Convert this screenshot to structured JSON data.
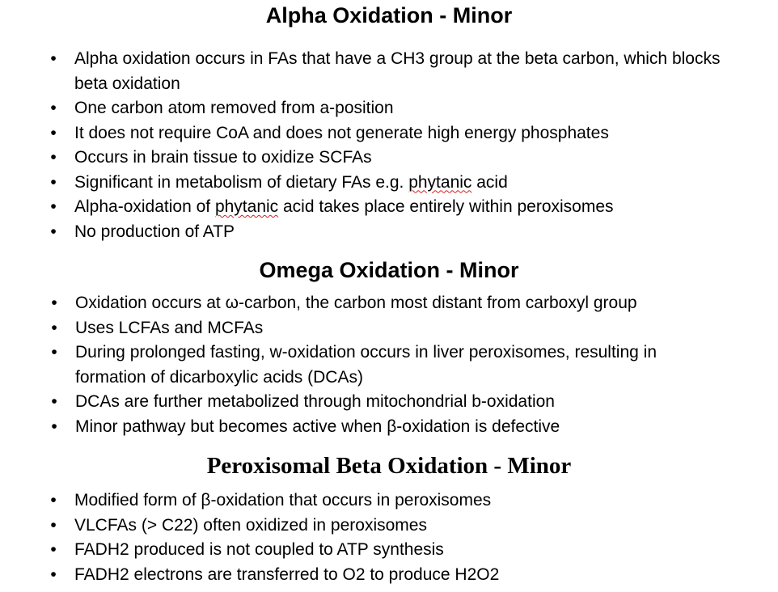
{
  "sections": [
    {
      "title": "Alpha Oxidation - Minor",
      "items": [
        "Alpha oxidation occurs in FAs that have a CH3 group at the beta carbon, which blocks beta oxidation",
        "One carbon atom removed from a-position",
        "It does not require CoA and does not generate high energy phosphates",
        "Occurs in brain tissue to oxidize SCFAs"
      ],
      "item_4": {
        "before": "Significant in metabolism of dietary FAs e.g. ",
        "flagged": "phytanic",
        "after": " acid"
      },
      "item_5": {
        "before": "Alpha-oxidation of ",
        "flagged": "phytanic",
        "after": " acid takes place entirely within peroxisomes"
      },
      "item_6": "No production of ATP"
    },
    {
      "title": "Omega Oxidation - Minor",
      "items": [
        "Oxidation occurs at ω-carbon, the carbon most distant from carboxyl group",
        "Uses LCFAs and MCFAs",
        "During prolonged fasting, w-oxidation occurs in liver peroxisomes, resulting in formation of dicarboxylic acids (DCAs)",
        "DCAs are further metabolized through mitochondrial b-oxidation",
        "Minor pathway but becomes active when β-oxidation is defective"
      ]
    },
    {
      "title": "Peroxisomal Beta Oxidation - Minor",
      "items": [
        "Modified form of β-oxidation that occurs in peroxisomes",
        "VLCFAs (> C22) often oxidized in peroxisomes",
        "FADH2 produced is not coupled to ATP synthesis",
        "FADH2 electrons are transferred to O2 to produce H2O2"
      ]
    }
  ],
  "bullet_glyph": "•"
}
